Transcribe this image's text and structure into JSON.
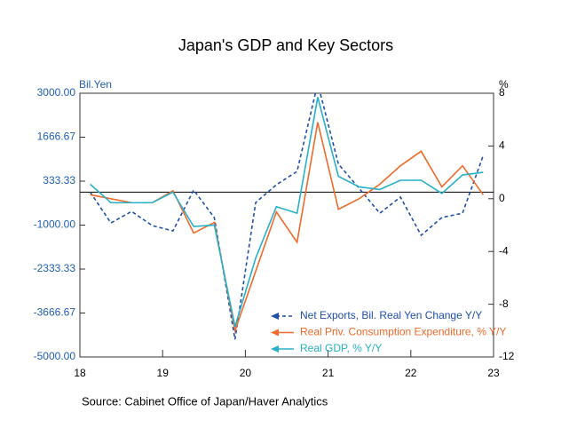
{
  "chart_data": {
    "type": "line",
    "title": "Japan's GDP and Key Sectors",
    "y_label": "Bil.Yen",
    "y2_label": "%",
    "source": "Source:  Cabinet Office of Japan/Haver Analytics",
    "x": [
      18.125,
      18.375,
      18.625,
      18.875,
      19.125,
      19.375,
      19.625,
      19.875,
      20.125,
      20.375,
      20.625,
      20.875,
      21.125,
      21.375,
      21.625,
      21.875,
      22.125,
      22.375,
      22.625,
      22.875
    ],
    "xlim": [
      18,
      23
    ],
    "xticks": [
      18,
      19,
      20,
      21,
      22,
      23
    ],
    "ylim": [
      -5000,
      3000
    ],
    "yticks": [
      {
        "value": -5000,
        "label": "-5000.00"
      },
      -3666.67,
      -2333.33,
      {
        "value": -1000,
        "label": "-1000.00"
      },
      333.33,
      1666.67,
      {
        "value": 3000,
        "label": "3000.00"
      }
    ],
    "y2lim": [
      -12,
      8
    ],
    "y2ticks": [
      -12,
      -8,
      -4,
      0,
      4,
      8
    ],
    "legend": "bottom-right",
    "series": [
      {
        "name": "Net Exports, Bil. Real Yen Change Y/Y",
        "color": "#1f4fa8",
        "dashed": true,
        "values": [
          0,
          -935,
          -585,
          -1016,
          -1178,
          62,
          -773,
          -4466,
          -315,
          224,
          628,
          3300,
          850,
          116,
          -640,
          -150,
          -1310,
          -770,
          -640,
          1110
        ]
      },
      {
        "name": "Real Priv. Consumption Expenditure, % Y/Y",
        "color": "#f06a2a",
        "axis": "y2",
        "values": [
          0.3,
          0,
          -0.3,
          -0.3,
          0.6,
          -2.6,
          -1.8,
          -10,
          -5.5,
          -1,
          -3.3,
          5.8,
          -0.8,
          0,
          1.1,
          2.5,
          3.6,
          0.9,
          2.5,
          0.3
        ]
      },
      {
        "name": "Real GDP, % Y/Y",
        "color": "#27b0c8",
        "axis": "y2",
        "values": [
          1.1,
          -0.3,
          -0.3,
          -0.3,
          0.5,
          -2.1,
          -2,
          -9.7,
          -4.5,
          -0.6,
          -1.1,
          7.7,
          1.7,
          0.9,
          0.7,
          1.4,
          1.4,
          0.4,
          1.8,
          2
        ]
      }
    ]
  }
}
